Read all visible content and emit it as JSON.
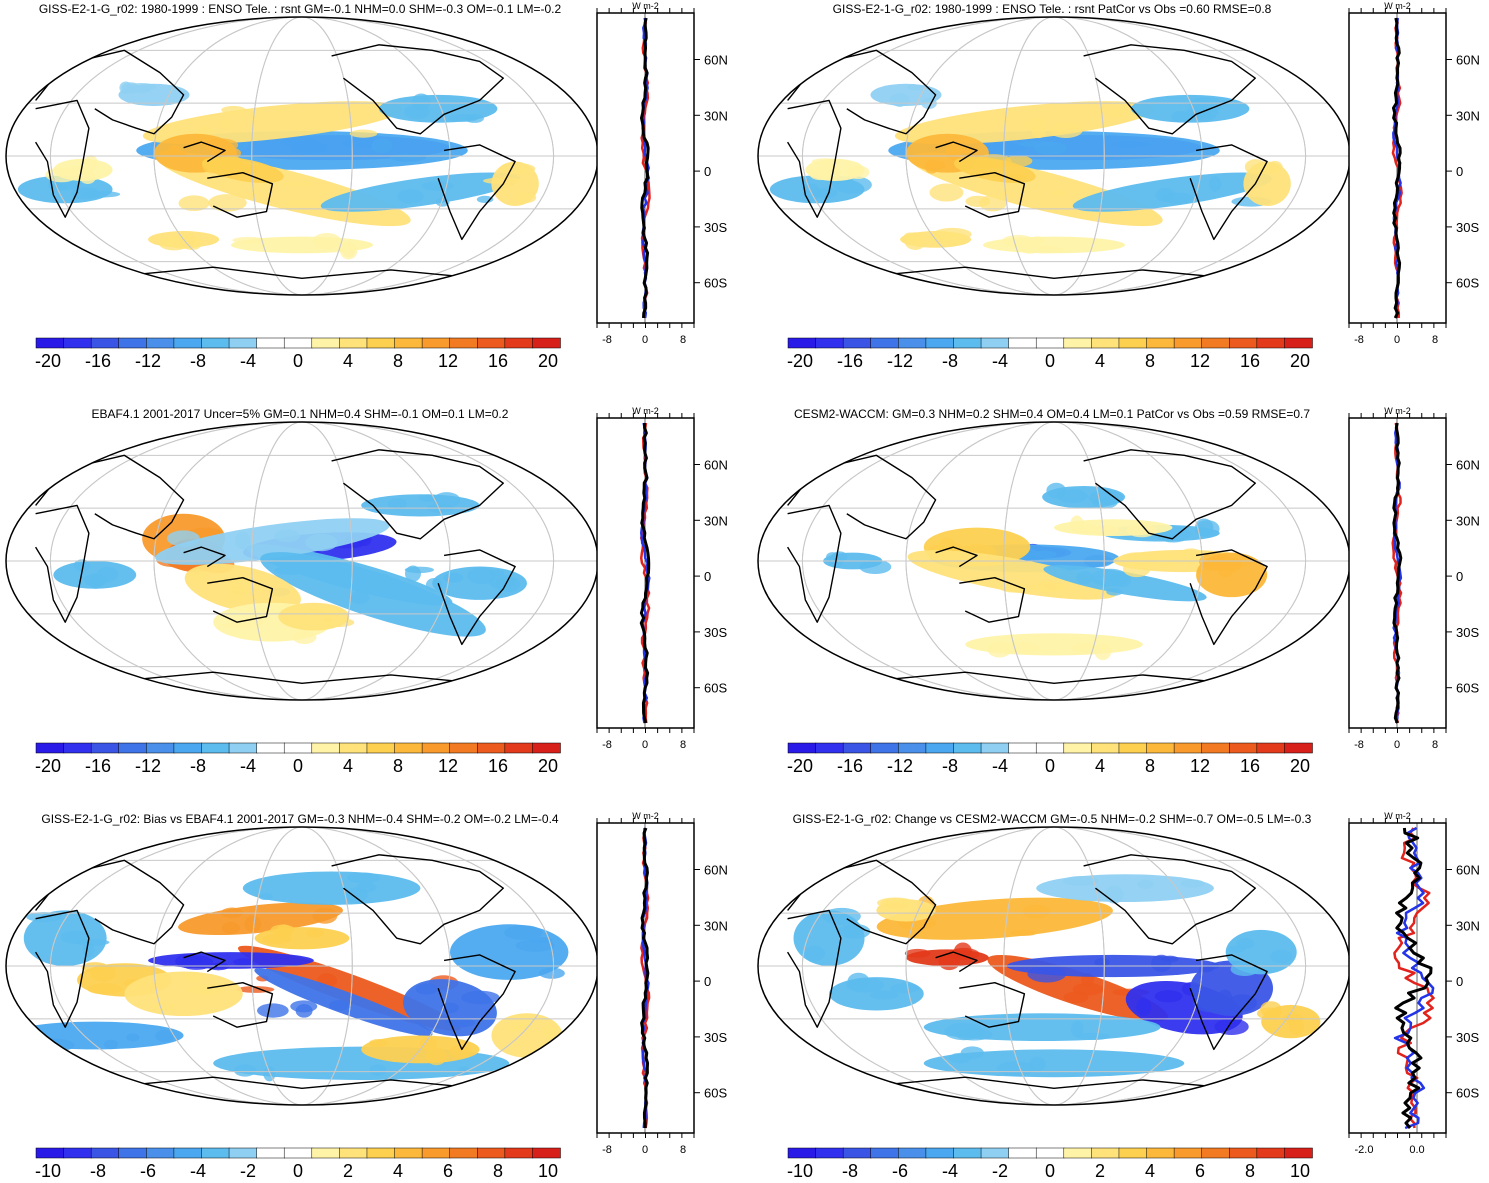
{
  "panels": [
    {
      "title": "GISS-E2-1-G_r02: 1980-1999 : ENSO Tele. : rsnt GM=-0.1 NHM=0.0 SHM=-0.3 OM=-0.1 LM=-0.2",
      "colorbar_labels": [
        "-20",
        "-16",
        "-12",
        "-8",
        "-4",
        "0",
        "4",
        "8",
        "12",
        "16",
        "20"
      ],
      "zonal_unit": "W m-2",
      "zonal_xticks": [
        "-8",
        "0",
        "8"
      ],
      "lat_labels": [
        "60N",
        "30N",
        "0",
        "30S",
        "60S"
      ],
      "zonal_style": "small",
      "colors": [
        "#e2221c",
        "#2233e8",
        "#000000"
      ]
    },
    {
      "title": "GISS-E2-1-G_r02: 1980-1999 : ENSO Tele. : rsnt PatCor vs Obs =0.60 RMSE=0.8",
      "colorbar_labels": [
        "-20",
        "-16",
        "-12",
        "-8",
        "-4",
        "0",
        "4",
        "8",
        "12",
        "16",
        "20"
      ],
      "zonal_unit": "W m-2",
      "zonal_xticks": [
        "-8",
        "0",
        "8"
      ],
      "lat_labels": [
        "60N",
        "30N",
        "0",
        "30S",
        "60S"
      ],
      "zonal_style": "small",
      "colors": [
        "#e2221c",
        "#2233e8",
        "#000000"
      ]
    },
    {
      "title": "EBAF4.1 2001-2017 Uncer=5% GM=0.1 NHM=0.4 SHM=-0.1 OM=0.1 LM=0.2",
      "colorbar_labels": [
        "-20",
        "-16",
        "-12",
        "-8",
        "-4",
        "0",
        "4",
        "8",
        "12",
        "16",
        "20"
      ],
      "zonal_unit": "W m-2",
      "zonal_xticks": [
        "-8",
        "0",
        "8"
      ],
      "lat_labels": [
        "60N",
        "30N",
        "0",
        "30S",
        "60S"
      ],
      "zonal_style": "small",
      "colors": [
        "#e2221c",
        "#2233e8",
        "#000000"
      ]
    },
    {
      "title": "CESM2-WACCM: GM=0.3 NHM=0.2 SHM=0.4 OM=0.4 LM=0.1 PatCor vs Obs =0.59 RMSE=0.7",
      "colorbar_labels": [
        "-20",
        "-16",
        "-12",
        "-8",
        "-4",
        "0",
        "4",
        "8",
        "12",
        "16",
        "20"
      ],
      "zonal_unit": "W m-2",
      "zonal_xticks": [
        "-8",
        "0",
        "8"
      ],
      "lat_labels": [
        "60N",
        "30N",
        "0",
        "30S",
        "60S"
      ],
      "zonal_style": "small",
      "colors": [
        "#e2221c",
        "#2233e8",
        "#000000"
      ]
    },
    {
      "title": "GISS-E2-1-G_r02: Bias vs EBAF4.1 2001-2017 GM=-0.3 NHM=-0.4 SHM=-0.2 OM=-0.2 LM=-0.4",
      "colorbar_labels": [
        "-10",
        "-8",
        "-6",
        "-4",
        "-2",
        "0",
        "2",
        "4",
        "6",
        "8",
        "10"
      ],
      "zonal_unit": "W m-2",
      "zonal_xticks": [
        "-8",
        "0",
        "8"
      ],
      "lat_labels": [
        "60N",
        "30N",
        "0",
        "30S",
        "60S"
      ],
      "zonal_style": "small",
      "colors": [
        "#e2221c",
        "#2233e8",
        "#000000"
      ]
    },
    {
      "title": "GISS-E2-1-G_r02: Change vs CESM2-WACCM GM=-0.5 NHM=-0.2 SHM=-0.7 OM=-0.5 LM=-0.3",
      "colorbar_labels": [
        "-10",
        "-8",
        "-6",
        "-4",
        "-2",
        "0",
        "2",
        "4",
        "6",
        "8",
        "10"
      ],
      "zonal_unit": "W m-2",
      "zonal_xticks": [
        "-2.0",
        "0.0"
      ],
      "lat_labels": [
        "60N",
        "30N",
        "0",
        "30S",
        "60S"
      ],
      "zonal_style": "large",
      "colors": [
        "#e2221c",
        "#2233e8",
        "#000000"
      ]
    }
  ],
  "colormap": [
    "#2a1ae8",
    "#3030ee",
    "#3a55e6",
    "#3f73e8",
    "#4a90ea",
    "#4ba8f0",
    "#5cbcee",
    "#8fd0f2",
    "#ffffff",
    "#ffffff",
    "#fff3a8",
    "#ffe27a",
    "#fdd050",
    "#fcb83a",
    "#f89a2c",
    "#f27a22",
    "#ec5a1e",
    "#e23a1a",
    "#d8201a"
  ]
}
